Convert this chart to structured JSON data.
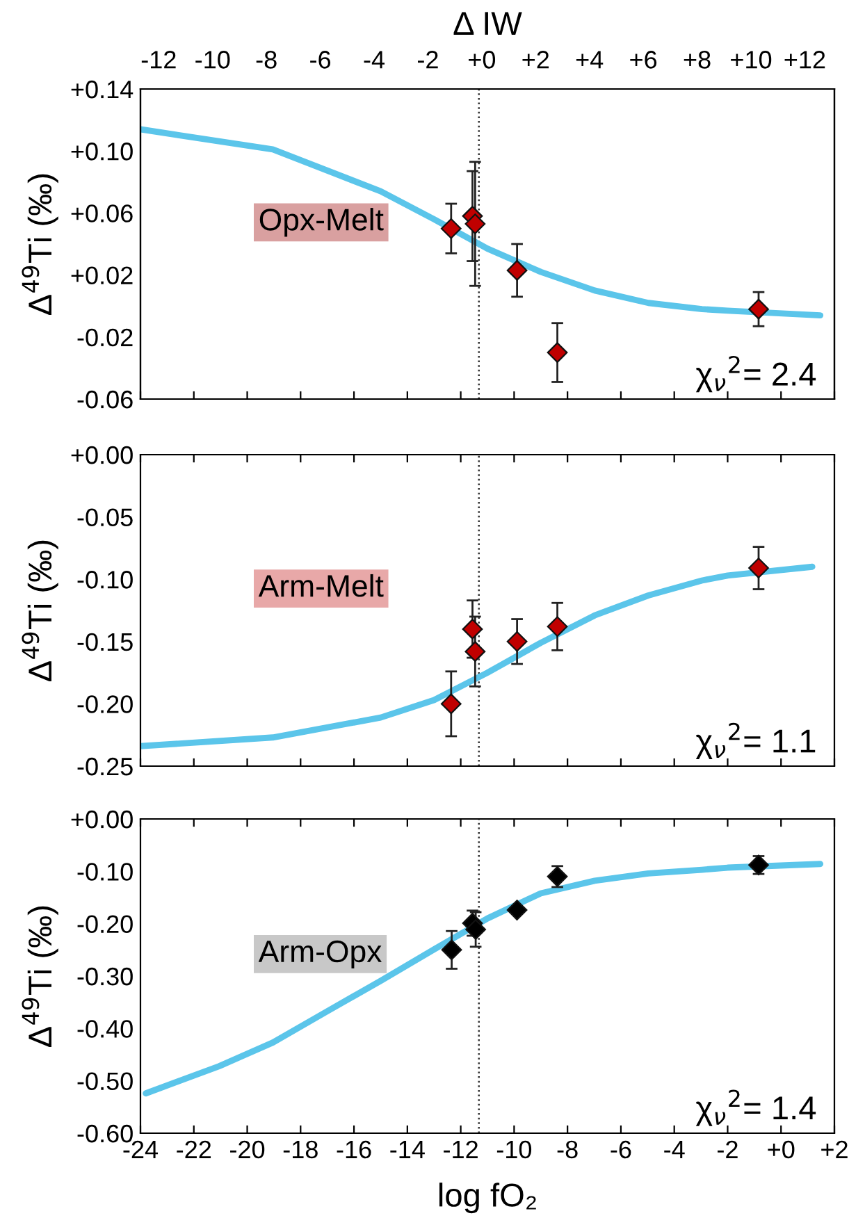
{
  "chart_data": [
    {
      "type": "scatter",
      "ylabel": "Δ$^{49}$Ti (‰)",
      "x2label": "Δ IW",
      "xlim": [
        -24,
        2
      ],
      "x2lim": [
        -12.68,
        13.1
      ],
      "x2ticks": [
        {
          "value": -12,
          "label": "-12"
        },
        {
          "value": -10,
          "label": "-10"
        },
        {
          "value": -8,
          "label": "-8"
        },
        {
          "value": -6,
          "label": "-6"
        },
        {
          "value": -4,
          "label": "-4"
        },
        {
          "value": -2,
          "label": "-2"
        },
        {
          "value": 0,
          "label": "+0"
        },
        {
          "value": 2,
          "label": "+2"
        },
        {
          "value": 4,
          "label": "+4"
        },
        {
          "value": 6,
          "label": "+6"
        },
        {
          "value": 8,
          "label": "+8"
        },
        {
          "value": 10,
          "label": "+10"
        },
        {
          "value": 12,
          "label": "+12"
        }
      ],
      "xticks": [
        {
          "value": -24,
          "label": null
        },
        {
          "value": -22,
          "label": null
        },
        {
          "value": -20,
          "label": null
        },
        {
          "value": -18,
          "label": null
        },
        {
          "value": -16,
          "label": null
        },
        {
          "value": -14,
          "label": null
        },
        {
          "value": -12,
          "label": null
        },
        {
          "value": -10,
          "label": null
        },
        {
          "value": -8,
          "label": null
        },
        {
          "value": -6,
          "label": null
        },
        {
          "value": -4,
          "label": null
        },
        {
          "value": -2,
          "label": null
        },
        {
          "value": 0,
          "label": null
        },
        {
          "value": 2,
          "label": null
        }
      ],
      "ylim": [
        -0.06,
        0.14
      ],
      "yticks": [
        {
          "value": -0.06,
          "label": "-0.06"
        },
        {
          "value": -0.02,
          "label": "-0.02"
        },
        {
          "value": 0.02,
          "label": "+0.02"
        },
        {
          "value": 0.06,
          "label": "+0.06"
        },
        {
          "value": 0.1,
          "label": "+0.10"
        },
        {
          "value": 0.14,
          "label": "+0.14"
        }
      ],
      "tick_labels": "y",
      "grid": false,
      "legend": false,
      "ref_lines": [
        {
          "axis": "x",
          "value": -11.32,
          "line_style": "dotted",
          "color": "#333333"
        }
      ],
      "annotations": [
        "Opx-Melt",
        "χ$_{ν}$$^{2}$= 2.4"
      ],
      "series": [
        {
          "type": "line",
          "color": "#5bc5ea",
          "x": [
            -24,
            -19.04,
            -15.0,
            -13.0,
            -11.0,
            -9.0,
            -6.98,
            -4.97,
            -2.96,
            -2.0,
            1.47
          ],
          "values": [
            0.114,
            0.101,
            0.074,
            0.056,
            0.037,
            0.022,
            0.01,
            0.002,
            -0.002,
            -0.003,
            -0.006
          ]
        },
        {
          "marker": "diamond",
          "color": "#c00000",
          "x": [
            -12.36,
            -11.56,
            -11.46,
            -9.89,
            -8.38,
            -0.84
          ],
          "values": [
            0.05,
            0.058,
            0.053,
            0.023,
            -0.03,
            -0.002
          ],
          "errors": [
            0.016,
            0.029,
            0.04,
            0.017,
            0.019,
            0.011
          ]
        }
      ]
    },
    {
      "type": "scatter",
      "ylabel": "Δ$^{49}$Ti (‰)",
      "xlim": [
        -24,
        2
      ],
      "xticks": [
        {
          "value": -24,
          "label": null
        },
        {
          "value": -22,
          "label": null
        },
        {
          "value": -20,
          "label": null
        },
        {
          "value": -18,
          "label": null
        },
        {
          "value": -16,
          "label": null
        },
        {
          "value": -14,
          "label": null
        },
        {
          "value": -12,
          "label": null
        },
        {
          "value": -10,
          "label": null
        },
        {
          "value": -8,
          "label": null
        },
        {
          "value": -6,
          "label": null
        },
        {
          "value": -4,
          "label": null
        },
        {
          "value": -2,
          "label": null
        },
        {
          "value": 0,
          "label": null
        },
        {
          "value": 2,
          "label": null
        }
      ],
      "ylim": [
        -0.25,
        0.0
      ],
      "yticks": [
        {
          "value": -0.25,
          "label": "-0.25"
        },
        {
          "value": -0.2,
          "label": "-0.20"
        },
        {
          "value": -0.15,
          "label": "-0.15"
        },
        {
          "value": -0.1,
          "label": "-0.10"
        },
        {
          "value": -0.05,
          "label": "-0.05"
        },
        {
          "value": 0.0,
          "label": "+0.00"
        }
      ],
      "tick_labels": "y",
      "grid": false,
      "legend": false,
      "ref_lines": [
        {
          "axis": "x",
          "value": -11.32,
          "line_style": "dotted",
          "color": "#333333"
        }
      ],
      "annotations": [
        "Arm-Melt",
        "χ$_{ν}$$^{2}$= 1.1"
      ],
      "series": [
        {
          "type": "line",
          "color": "#5bc5ea",
          "x": [
            -24,
            -19.04,
            -15.0,
            -13.0,
            -11.0,
            -9.0,
            -6.98,
            -4.97,
            -2.96,
            -2.0,
            1.17
          ],
          "values": [
            -0.234,
            -0.227,
            -0.211,
            -0.197,
            -0.175,
            -0.151,
            -0.129,
            -0.113,
            -0.101,
            -0.097,
            -0.09
          ]
        },
        {
          "marker": "diamond",
          "color": "#c00000",
          "x": [
            -12.36,
            -11.56,
            -11.46,
            -9.89,
            -8.38,
            -0.84
          ],
          "values": [
            -0.2,
            -0.14,
            -0.158,
            -0.15,
            -0.138,
            -0.091
          ],
          "errors": [
            0.026,
            0.023,
            0.028,
            0.018,
            0.019,
            0.017
          ]
        }
      ]
    },
    {
      "type": "scatter",
      "ylabel": "Δ$^{49}$Ti (‰)",
      "xlabel": "log fO₂",
      "xlim": [
        -24,
        2
      ],
      "xticks": [
        {
          "value": -24,
          "label": "-24"
        },
        {
          "value": -22,
          "label": "-22"
        },
        {
          "value": -20,
          "label": "-20"
        },
        {
          "value": -18,
          "label": "-18"
        },
        {
          "value": -16,
          "label": "-16"
        },
        {
          "value": -14,
          "label": "-14"
        },
        {
          "value": -12,
          "label": "-12"
        },
        {
          "value": -10,
          "label": "-10"
        },
        {
          "value": -8,
          "label": "-8"
        },
        {
          "value": -6,
          "label": "-6"
        },
        {
          "value": -4,
          "label": "-4"
        },
        {
          "value": -2,
          "label": "-2"
        },
        {
          "value": 0,
          "label": "+0"
        },
        {
          "value": 2,
          "label": "+2"
        }
      ],
      "ylim": [
        -0.6,
        0.0
      ],
      "yticks": [
        {
          "value": -0.6,
          "label": "-0.60"
        },
        {
          "value": -0.5,
          "label": "-0.50"
        },
        {
          "value": -0.4,
          "label": "-0.40"
        },
        {
          "value": -0.3,
          "label": "-0.30"
        },
        {
          "value": -0.2,
          "label": "-0.20"
        },
        {
          "value": -0.1,
          "label": "-0.10"
        },
        {
          "value": 0.0,
          "label": "+0.00"
        }
      ],
      "grid": false,
      "legend": false,
      "ref_lines": [
        {
          "axis": "x",
          "value": -11.32,
          "line_style": "dotted",
          "color": "#333333"
        }
      ],
      "annotations": [
        "Arm-Opx",
        "χ$_{ν}$$^{2}$= 1.4"
      ],
      "series": [
        {
          "type": "line",
          "color": "#5bc5ea",
          "x": [
            -23.8,
            -21.05,
            -19.04,
            -17.03,
            -15.0,
            -13.0,
            -11.0,
            -9.0,
            -6.98,
            -4.97,
            -2.96,
            -2.0,
            1.47
          ],
          "values": [
            -0.524,
            -0.472,
            -0.427,
            -0.368,
            -0.309,
            -0.249,
            -0.19,
            -0.142,
            -0.118,
            -0.104,
            -0.097,
            -0.093,
            -0.086
          ]
        },
        {
          "marker": "diamond",
          "color": "#000000",
          "x": [
            -12.34,
            -11.56,
            -11.44,
            -9.89,
            -8.38,
            -0.84
          ],
          "values": [
            -0.25,
            -0.199,
            -0.211,
            -0.174,
            -0.11,
            -0.088
          ],
          "errors": [
            0.036,
            0.024,
            0.033,
            null,
            0.02,
            0.017
          ]
        }
      ]
    }
  ]
}
